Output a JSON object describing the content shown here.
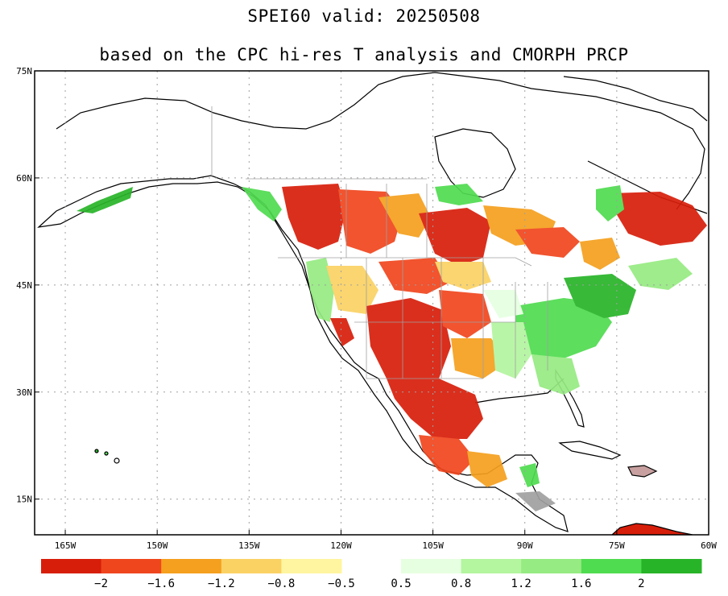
{
  "title": {
    "line1": "SPEI60  valid: 20250508",
    "line2": "based on the CPC hi-res T analysis and CMORPH PRCP"
  },
  "axes": {
    "lat_labels": [
      "75N",
      "60N",
      "45N",
      "30N",
      "15N"
    ],
    "lat_values": [
      75,
      60,
      45,
      30,
      15
    ],
    "lon_labels": [
      "165W",
      "150W",
      "135W",
      "120W",
      "105W",
      "90W",
      "75W",
      "60W"
    ],
    "lon_values": [
      -165,
      -150,
      -135,
      -120,
      -105,
      -90,
      -75,
      -60
    ],
    "lat_range": [
      10,
      75
    ],
    "lon_range": [
      -170,
      -60
    ],
    "grid": "dotted"
  },
  "colorbar": {
    "negative_colors": [
      "#d71e0a",
      "#f0461e",
      "#f5a01e",
      "#fad264",
      "#fff5a0"
    ],
    "positive_colors": [
      "#e6ffe1",
      "#b4f5a0",
      "#96eb82",
      "#50dc50",
      "#28b428"
    ],
    "negative_labels": [
      "-2",
      "-1.6",
      "-1.2",
      "-0.8",
      "-0.5"
    ],
    "positive_labels": [
      "0.5",
      "0.8",
      "1.2",
      "1.6",
      "2"
    ]
  },
  "colors": {
    "land_outline": "#000000",
    "border": "#a0a0a0",
    "grid": "#a0a0a0",
    "dry": "#d71e0a",
    "wet": "#28b428"
  }
}
